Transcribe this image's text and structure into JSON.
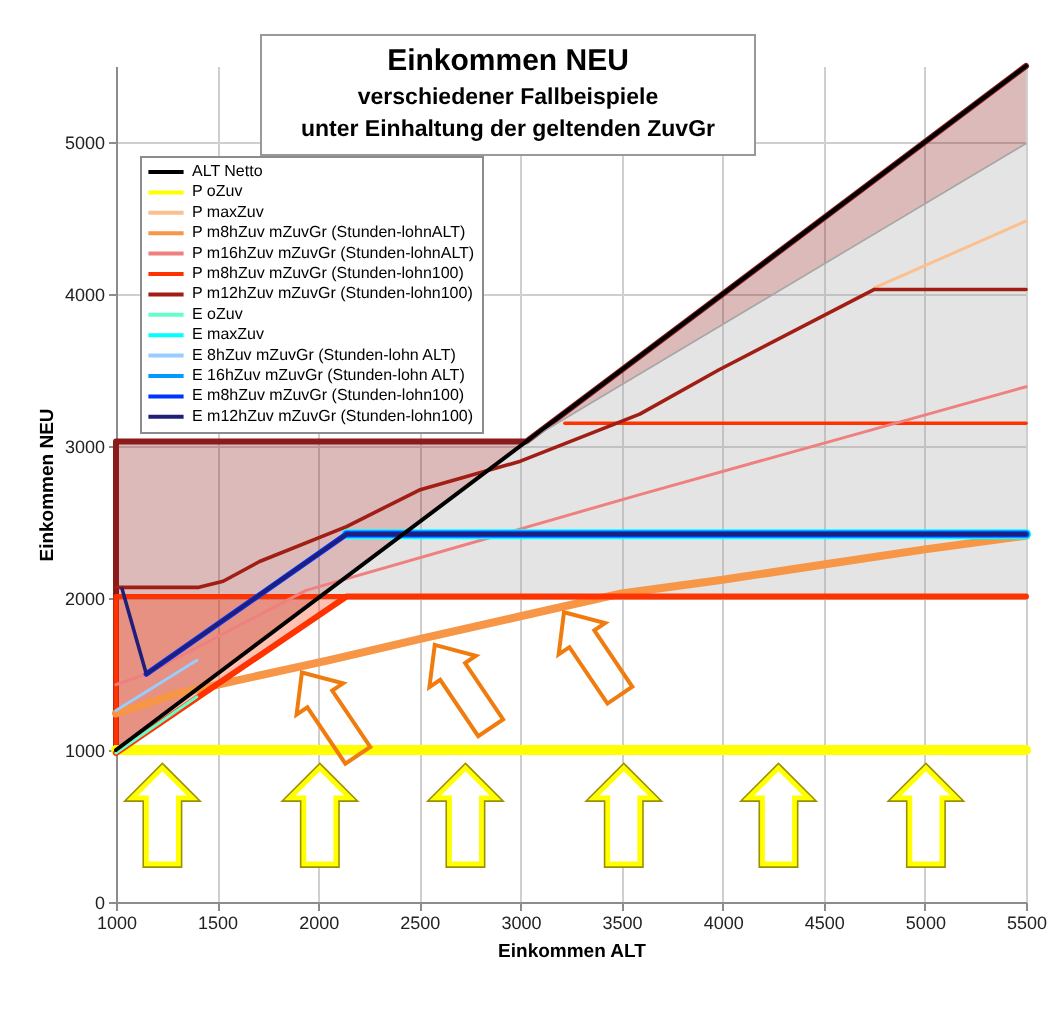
{
  "chart_data": {
    "type": "line",
    "title": "Einkommen NEU",
    "subtitle": "verschiedener Fallbeispiele\nunter Einhaltung der geltenden ZuvGr",
    "xlabel": "Einkommen ALT",
    "ylabel": "Einkommen NEU",
    "xlim": [
      1000,
      5500
    ],
    "xticks": [
      1000,
      1500,
      2000,
      2500,
      3000,
      3500,
      4000,
      4500,
      5000,
      5500
    ],
    "ylim": [
      0,
      5500
    ],
    "yticks": [
      0,
      1000,
      2000,
      3000,
      4000,
      5000
    ],
    "grid": true,
    "legend": "top left",
    "series": [
      {
        "color": "#8b1a1a",
        "x": [
          1000,
          1000,
          3030,
          5500
        ],
        "values": [
          1000,
          3030,
          3030,
          5500
        ],
        "lower": [
          1000,
          1000,
          3030,
          4990
        ],
        "upper": [
          1000,
          3030,
          3030,
          5500
        ]
      },
      {
        "color": "#a6a6a6",
        "x": [
          2000,
          3030,
          5500
        ],
        "values": [
          2000,
          3030,
          4990
        ],
        "lower": [
          2000,
          2000,
          2000
        ],
        "upper": [
          2000,
          3030,
          4990
        ]
      },
      {
        "color": "#ff3300",
        "x": [
          1000,
          1000,
          2140
        ],
        "values": [
          980,
          2010,
          2010
        ],
        "lower": [
          980,
          980,
          2010
        ],
        "upper": [
          980,
          2010,
          2010
        ]
      },
      {
        "color": "#ff3300",
        "x": [
          3220,
          5500
        ],
        "values": [
          3150,
          3150
        ]
      },
      {
        "name": "ALT Netto",
        "color": "#000000",
        "x": [
          1000,
          5500
        ],
        "values": [
          1000,
          5500
        ]
      },
      {
        "name": "P oZuv",
        "color": "#ffff00",
        "x": [
          1000,
          5500
        ],
        "values": [
          1000,
          1000
        ]
      },
      {
        "name": "P maxZuv",
        "color": "#fac08f",
        "x": [
          4750,
          5500
        ],
        "values": [
          4040,
          4480
        ]
      },
      {
        "name": "P m8hZuv mZuvGr (Stunden-lohnALT)",
        "color": "#f79646",
        "x": [
          1000,
          1300,
          2050,
          2500,
          3000,
          3500,
          4000,
          4500,
          5000,
          5500
        ],
        "values": [
          1240,
          1370,
          1590,
          1730,
          1880,
          2030,
          2120,
          2220,
          2320,
          2410
        ]
      },
      {
        "name": "P m16hZuv mZuvGr (Stunden-lohnALT)",
        "color": "#f08080",
        "x": [
          1000,
          1150,
          1940,
          3590,
          5500
        ],
        "values": [
          1430,
          1500,
          2050,
          2680,
          3390
        ]
      },
      {
        "name": "P m8hZuv mZuvGr (Stunden-lohn100)",
        "color": "#ff3300",
        "x": [
          1000,
          2140,
          5500
        ],
        "values": [
          980,
          2010,
          2010
        ]
      },
      {
        "name": "P m12hZuv mZuvGr (Stunden-lohn100)",
        "color": "#a01e14",
        "x": [
          1000,
          1410,
          1530,
          1710,
          2140,
          2500,
          3000,
          3590,
          3980,
          4750,
          5500
        ],
        "values": [
          2070,
          2070,
          2110,
          2240,
          2470,
          2710,
          2900,
          3210,
          3500,
          4030,
          4030
        ]
      },
      {
        "name": "E oZuv",
        "color": "#66ffcc",
        "x": [
          1000,
          1400
        ],
        "values": [
          980,
          1350
        ]
      },
      {
        "name": "E maxZuv",
        "color": "#00ffff",
        "x": [
          2140,
          5500
        ],
        "values": [
          2420,
          2420
        ]
      },
      {
        "name": "E 8hZuv mZuvGr (Stunden-lohn ALT)",
        "color": "#99ccff",
        "x": [
          1000,
          1400
        ],
        "values": [
          1260,
          1590
        ]
      },
      {
        "name": "E 16hZuv mZuvGr (Stunden-lohn ALT)",
        "color": "#0099ff",
        "x": [
          2140,
          5500
        ],
        "values": [
          2420,
          2420
        ]
      },
      {
        "name": "E m8hZuv mZuvGr (Stunden-lohn100)",
        "color": "#0033ff",
        "x": [
          1150,
          2140,
          5500
        ],
        "values": [
          1500,
          2420,
          2420
        ]
      },
      {
        "name": "E m12hZuv mZuvGr (Stunden-lohn100)",
        "color": "#1f1f7a",
        "x": [
          1030,
          1150,
          2140,
          5500
        ],
        "values": [
          2060,
          1500,
          2420,
          2420
        ]
      }
    ]
  }
}
